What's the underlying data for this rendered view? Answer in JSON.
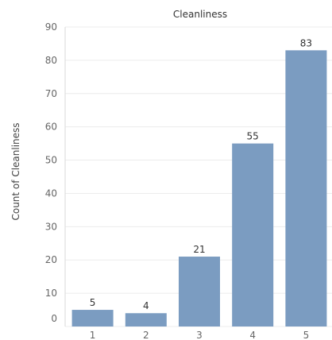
{
  "chart_data": {
    "type": "bar",
    "title": "Cleanliness",
    "xlabel": "",
    "ylabel": "Count of Cleanliness",
    "categories": [
      "1",
      "2",
      "3",
      "4",
      "5"
    ],
    "values": [
      5,
      4,
      21,
      55,
      83
    ],
    "data_labels": [
      "5",
      "4",
      "21",
      "55",
      "83"
    ],
    "ylim": [
      0,
      90
    ],
    "yticks": [
      "0",
      "10",
      "20",
      "30",
      "40",
      "50",
      "60",
      "70",
      "80",
      "90"
    ],
    "bar_color": "#7b9cc1",
    "grid": true,
    "legend": "none"
  }
}
